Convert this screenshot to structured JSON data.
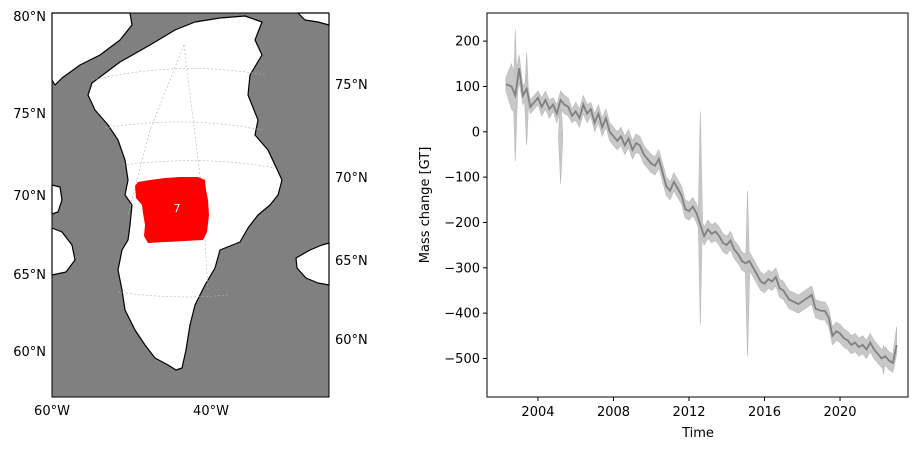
{
  "map_panel": {
    "left_lat_labels": [
      "80°N",
      "75°N",
      "70°N",
      "65°N",
      "60°N"
    ],
    "right_lat_labels": [
      "75°N",
      "70°N",
      "65°N",
      "60°N"
    ],
    "lon_labels": [
      "60°W",
      "40°W"
    ],
    "region_label": "7",
    "colors": {
      "ocean": "#808080",
      "land": "#ffffff",
      "coast": "#000000",
      "region": "#ff0000",
      "grid": "#b0b0b0"
    }
  },
  "chart_data": [
    {
      "type": "line",
      "title": "",
      "xlabel": "Time",
      "ylabel": "Mass change [GT]",
      "xlim": [
        2001.3,
        2023.6
      ],
      "ylim": [
        -585,
        262
      ],
      "xticks": [
        2004,
        2008,
        2012,
        2016,
        2020
      ],
      "yticks": [
        200,
        100,
        0,
        -100,
        -200,
        -300,
        -400,
        -500
      ],
      "grid": false,
      "line_color": "#808080",
      "band_color": "#c8c8c8",
      "x": [
        2002.3,
        2002.6,
        2002.8,
        2003.0,
        2003.2,
        2003.4,
        2003.6,
        2003.8,
        2004.0,
        2004.2,
        2004.4,
        2004.6,
        2004.8,
        2005.0,
        2005.2,
        2005.4,
        2005.6,
        2005.8,
        2006.0,
        2006.2,
        2006.4,
        2006.6,
        2006.8,
        2007.0,
        2007.2,
        2007.4,
        2007.6,
        2007.8,
        2008.0,
        2008.2,
        2008.4,
        2008.6,
        2008.8,
        2009.0,
        2009.2,
        2009.4,
        2009.6,
        2009.8,
        2010.0,
        2010.2,
        2010.4,
        2010.6,
        2010.8,
        2011.0,
        2011.2,
        2011.4,
        2011.6,
        2011.8,
        2012.0,
        2012.2,
        2012.4,
        2012.6,
        2012.8,
        2013.0,
        2013.2,
        2013.4,
        2013.6,
        2013.8,
        2014.0,
        2014.2,
        2014.4,
        2014.6,
        2014.8,
        2015.0,
        2015.2,
        2015.4,
        2015.6,
        2015.8,
        2016.0,
        2016.2,
        2016.4,
        2016.6,
        2016.8,
        2017.0,
        2017.3,
        2017.8,
        2018.5,
        2018.7,
        2019.0,
        2019.2,
        2019.4,
        2019.6,
        2019.8,
        2020.0,
        2020.2,
        2020.4,
        2020.6,
        2020.8,
        2021.0,
        2021.2,
        2021.4,
        2021.6,
        2021.8,
        2022.0,
        2022.2,
        2022.4,
        2022.6,
        2022.8,
        2023.0
      ],
      "series": [
        {
          "values": [
            105,
            100,
            80,
            140,
            80,
            95,
            55,
            65,
            75,
            55,
            70,
            50,
            60,
            40,
            70,
            60,
            55,
            35,
            45,
            30,
            60,
            40,
            50,
            20,
            40,
            10,
            30,
            0,
            -10,
            -20,
            -10,
            -30,
            -15,
            -40,
            -25,
            -30,
            -50,
            -60,
            -70,
            -75,
            -60,
            -90,
            -120,
            -130,
            -110,
            -125,
            -140,
            -170,
            -175,
            -165,
            -180,
            -205,
            -230,
            -215,
            -225,
            -220,
            -230,
            -245,
            -250,
            -240,
            -260,
            -270,
            -285,
            -290,
            -285,
            -300,
            -315,
            -330,
            -335,
            -325,
            -330,
            -320,
            -345,
            -350,
            -370,
            -380,
            -360,
            -390,
            -395,
            -395,
            -410,
            -450,
            -440,
            -445,
            -455,
            -460,
            -470,
            -465,
            -475,
            -470,
            -480,
            -465,
            -480,
            -490,
            -500,
            -495,
            -505,
            -510,
            -470
          ],
          "lower": [
            90,
            50,
            40,
            110,
            60,
            75,
            40,
            50,
            60,
            35,
            50,
            30,
            45,
            20,
            50,
            40,
            35,
            20,
            25,
            10,
            40,
            20,
            35,
            0,
            20,
            -10,
            10,
            -20,
            -30,
            -40,
            -30,
            -50,
            -35,
            -60,
            -45,
            -50,
            -70,
            -80,
            -90,
            -95,
            -80,
            -110,
            -140,
            -150,
            -130,
            -145,
            -160,
            -190,
            -195,
            -185,
            -200,
            -225,
            -250,
            -235,
            -245,
            -240,
            -250,
            -265,
            -270,
            -260,
            -280,
            -290,
            -305,
            -310,
            -305,
            -320,
            -335,
            -350,
            -355,
            -345,
            -350,
            -340,
            -365,
            -370,
            -390,
            -400,
            -380,
            -410,
            -415,
            -415,
            -430,
            -470,
            -460,
            -465,
            -475,
            -480,
            -490,
            -485,
            -495,
            -490,
            -500,
            -485,
            -500,
            -510,
            -520,
            -515,
            -525,
            -530,
            -490
          ],
          "upper": [
            120,
            150,
            120,
            170,
            100,
            115,
            70,
            80,
            90,
            75,
            90,
            70,
            75,
            60,
            90,
            80,
            75,
            50,
            65,
            50,
            80,
            60,
            65,
            40,
            60,
            30,
            50,
            20,
            10,
            0,
            10,
            -10,
            5,
            -20,
            -5,
            -10,
            -30,
            -40,
            -50,
            -55,
            -40,
            -70,
            -100,
            -110,
            -90,
            -105,
            -120,
            -150,
            -155,
            -145,
            -160,
            -185,
            -210,
            -195,
            -205,
            -200,
            -210,
            -225,
            -230,
            -220,
            -240,
            -250,
            -265,
            -270,
            -265,
            -280,
            -295,
            -310,
            -315,
            -305,
            -310,
            -300,
            -325,
            -330,
            -350,
            -360,
            -340,
            -370,
            -375,
            -375,
            -390,
            -430,
            -420,
            -425,
            -435,
            -440,
            -450,
            -445,
            -455,
            -450,
            -460,
            -445,
            -460,
            -470,
            -480,
            -475,
            -485,
            -490,
            -430
          ]
        }
      ],
      "spikes": [
        {
          "x": 2002.8,
          "low": -65,
          "high": 225
        },
        {
          "x": 2003.4,
          "low": -30,
          "high": 175
        },
        {
          "x": 2005.2,
          "low": -115,
          "high": 90
        },
        {
          "x": 2012.6,
          "low": -425,
          "high": 45
        },
        {
          "x": 2015.1,
          "low": -495,
          "high": -130
        },
        {
          "x": 2022.3,
          "low": -535,
          "high": -470
        }
      ]
    }
  ]
}
